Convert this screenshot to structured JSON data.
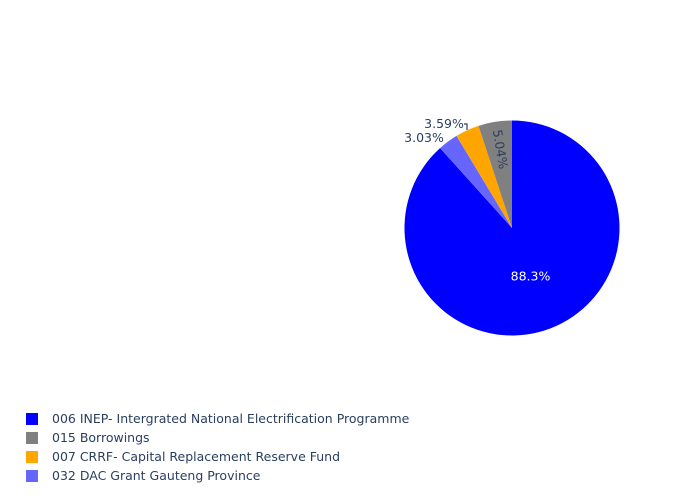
{
  "chart_data": {
    "type": "pie",
    "direction": "clockwise",
    "start": "top",
    "legend_placement": "bottom-left",
    "slices": [
      {
        "label": "006 INEP- Intergrated National Electrification Programme",
        "value": 88.3,
        "text": "88.3%",
        "color": "#0000ff"
      },
      {
        "label": "032 DAC Grant Gauteng Province",
        "value": 3.03,
        "text": "3.03%",
        "color": "#6666ff"
      },
      {
        "label": "007 CRRF- Capital Replacement Reserve Fund",
        "value": 3.59,
        "text": "3.59%",
        "color": "#ffa500"
      },
      {
        "label": "015 Borrowings",
        "value": 5.04,
        "text": "5.04%",
        "color": "#808080"
      }
    ],
    "legend_order": [
      "006 INEP- Intergrated National Electrification Programme",
      "015 Borrowings",
      "007 CRRF- Capital Replacement Reserve Fund",
      "032 DAC Grant Gauteng Province"
    ]
  },
  "legend": {
    "items": [
      {
        "label": "006 INEP- Intergrated National Electrification Programme",
        "color": "#0000ff"
      },
      {
        "label": "015 Borrowings",
        "color": "#808080"
      },
      {
        "label": "007 CRRF- Capital Replacement Reserve Fund",
        "color": "#ffa500"
      },
      {
        "label": "032 DAC Grant Gauteng Province",
        "color": "#6666ff"
      }
    ]
  }
}
